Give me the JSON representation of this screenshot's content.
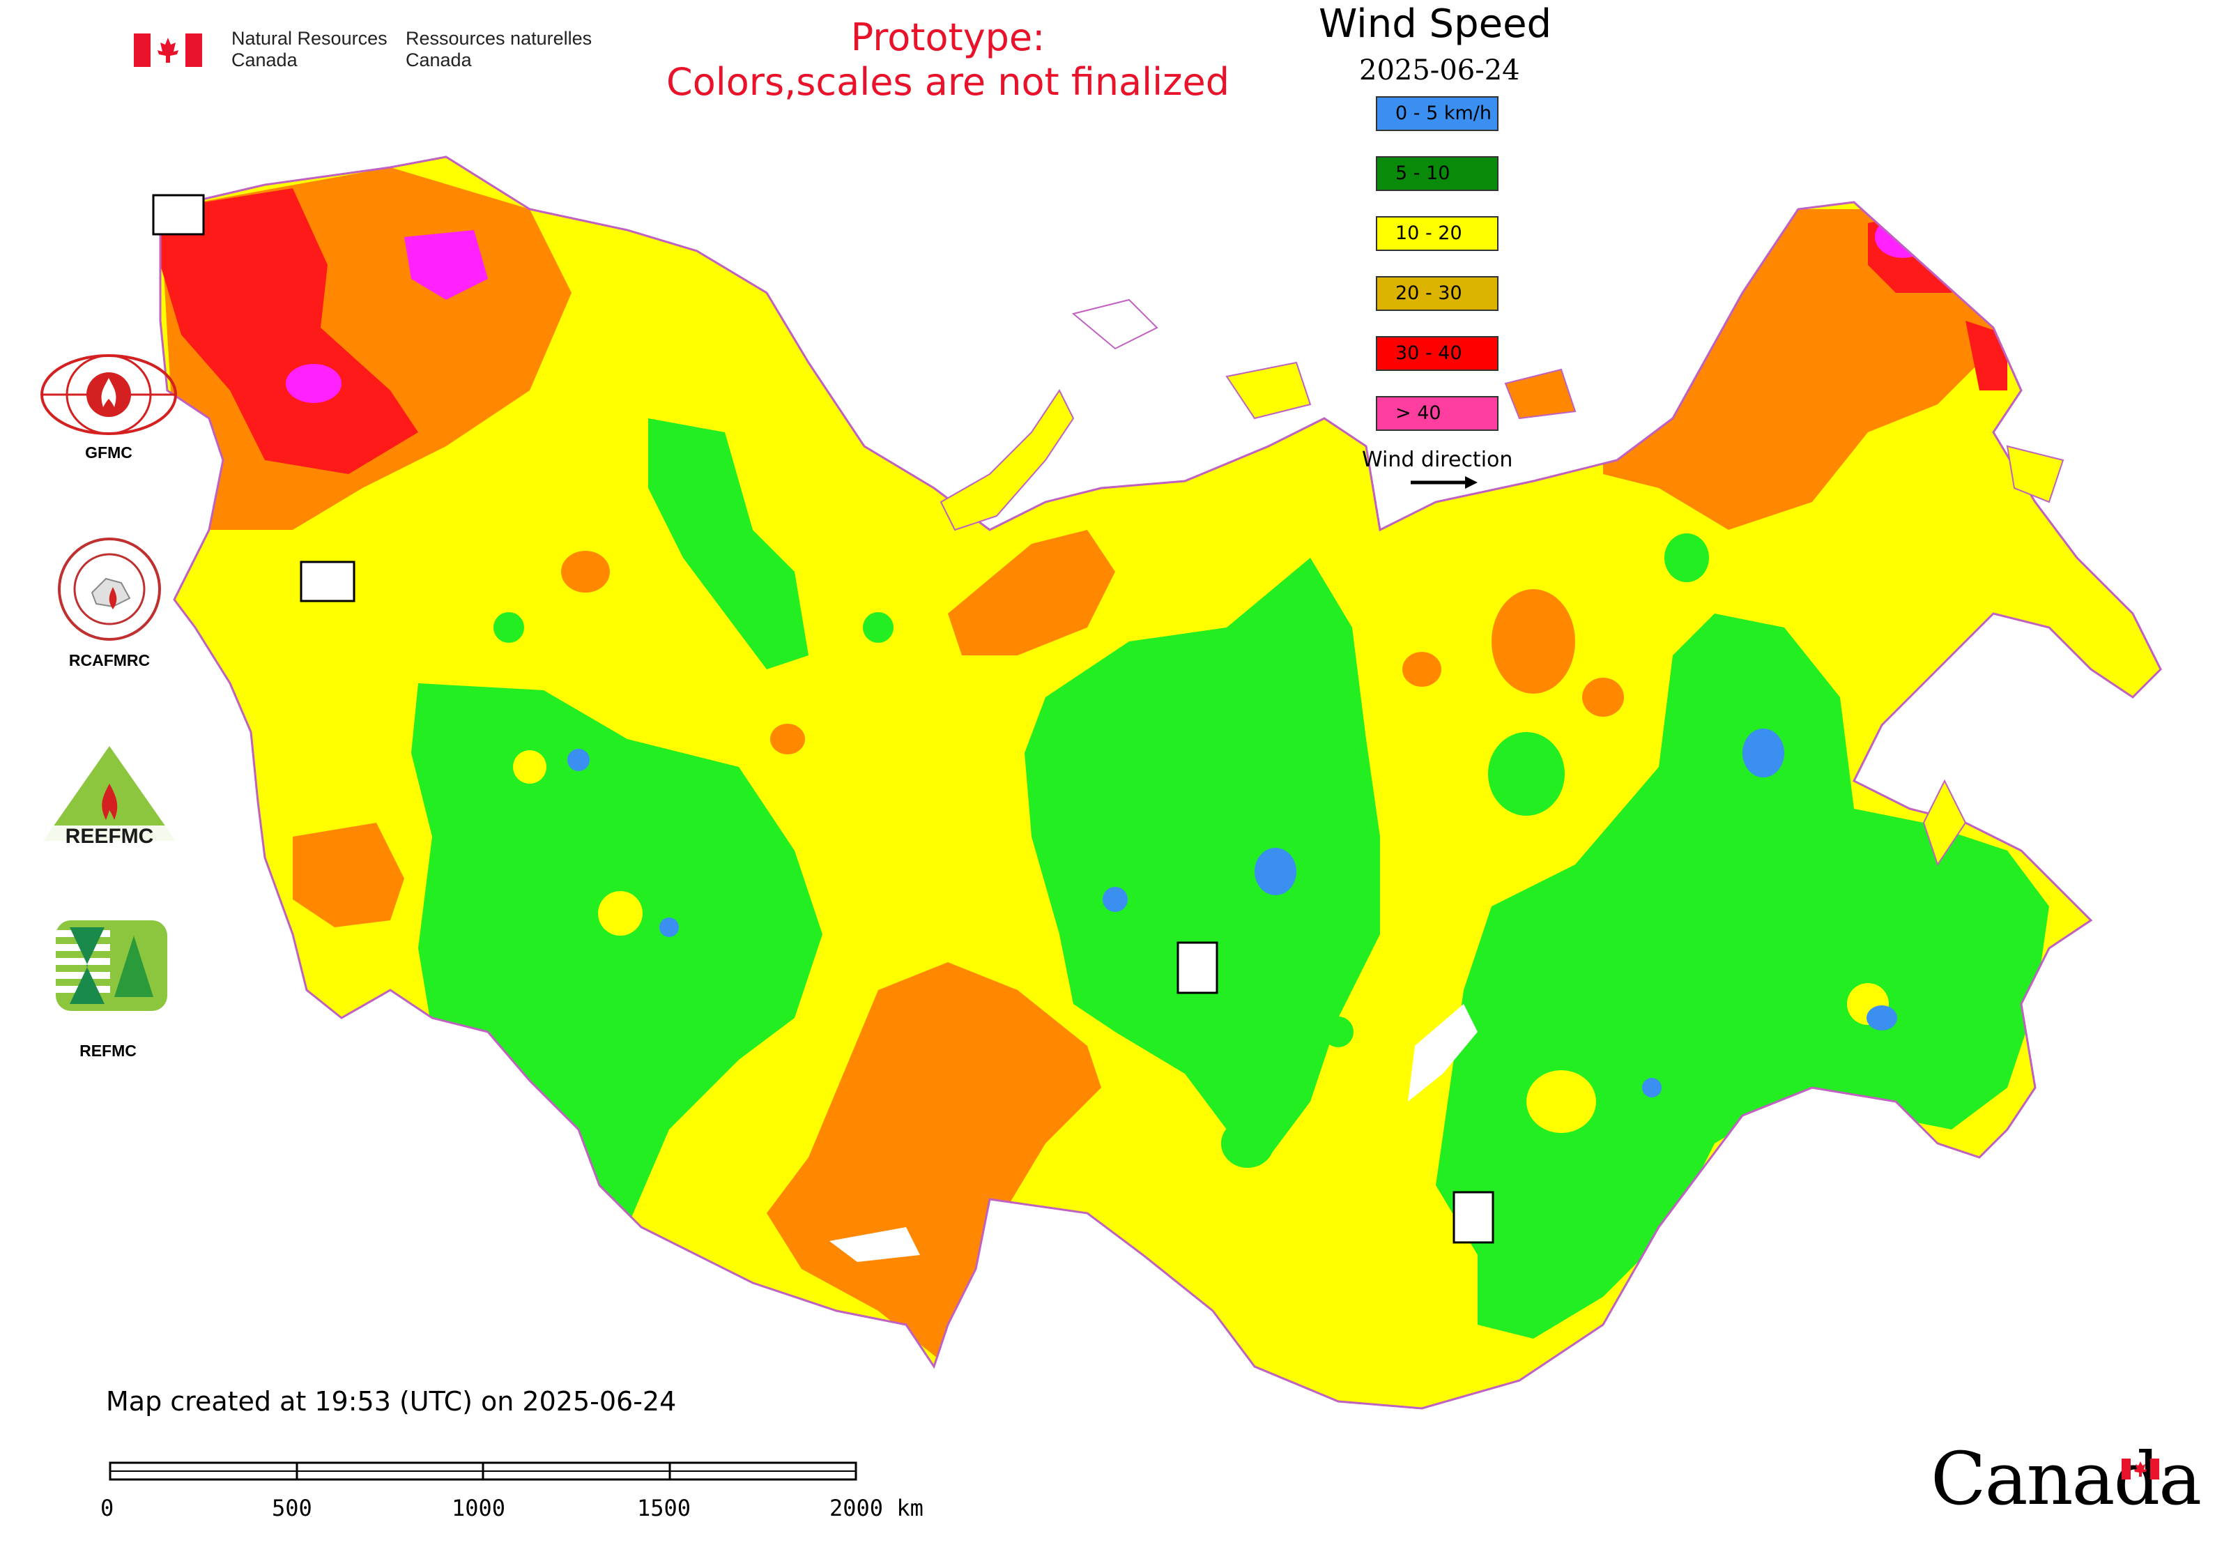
{
  "header": {
    "agency_en_line1": "Natural Resources",
    "agency_en_line2": "Canada",
    "agency_fr_line1": "Ressources naturelles",
    "agency_fr_line2": "Canada",
    "prototype_line1": "Prototype:",
    "prototype_line2": "Colors,scales are not finalized"
  },
  "legend": {
    "title": "Wind Speed",
    "date": "2025-06-24",
    "classes": [
      {
        "label": "0 - 5 km/h",
        "color": "#3a8ff0"
      },
      {
        "label": "5 - 10",
        "color": "#0a8a0a"
      },
      {
        "label": "10 - 20",
        "color": "#ffff00"
      },
      {
        "label": "20 - 30",
        "color": "#dcb400"
      },
      {
        "label": "30 - 40",
        "color": "#ff0000"
      },
      {
        "label": "> 40",
        "color": "#ff3fa0"
      }
    ],
    "wind_direction_label": "Wind direction"
  },
  "map_colors": {
    "low": "#3a8ff0",
    "green": "#22ee22",
    "yellow": "#ffff00",
    "orange": "#ff8800",
    "red": "#ff1a1a",
    "magenta": "#ff22ff",
    "border": "#c060c0"
  },
  "orgs": [
    {
      "label": "GFMC"
    },
    {
      "label": "RCAFMRC"
    },
    {
      "label": "REEFMC"
    },
    {
      "label": "REFMC"
    }
  ],
  "footer": {
    "created": "Map created at 19:53 (UTC) on 2025-06-24",
    "scale_ticks": [
      "0",
      "500",
      "1000",
      "1500",
      "2000 km"
    ],
    "wordmark": "Canada"
  }
}
